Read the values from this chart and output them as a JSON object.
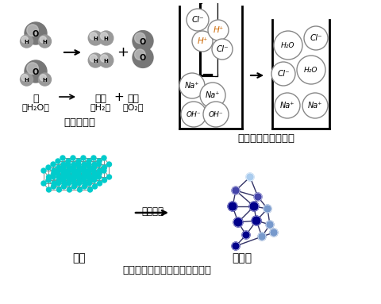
{
  "bg_color": "#ffffff",
  "top_label_water": "水",
  "top_label_water_formula": "H₂O",
  "top_label_h2": "氢气",
  "top_label_h2_formula": "H₂",
  "top_label_o2": "氧气",
  "top_label_o2_formula": "O₂",
  "top_section_label": "水分子分解",
  "mid_section_label": "氢氧化钠与盐酸反应",
  "bottom_label_graphite": "石墨",
  "bottom_label_diamond": "金刚石",
  "bottom_section_label": "石墨在一定条件下转化为金刚石",
  "condition_label": "一定条件",
  "h_plus_color": "#cc6600",
  "graphite_node_color": "#00cccc",
  "graphite_bond_color": "#888888",
  "diamond_dark_color": "#00008b",
  "diamond_mid_color": "#4444aa",
  "diamond_light_color": "#7799cc",
  "diamond_top_color": "#aaccee"
}
